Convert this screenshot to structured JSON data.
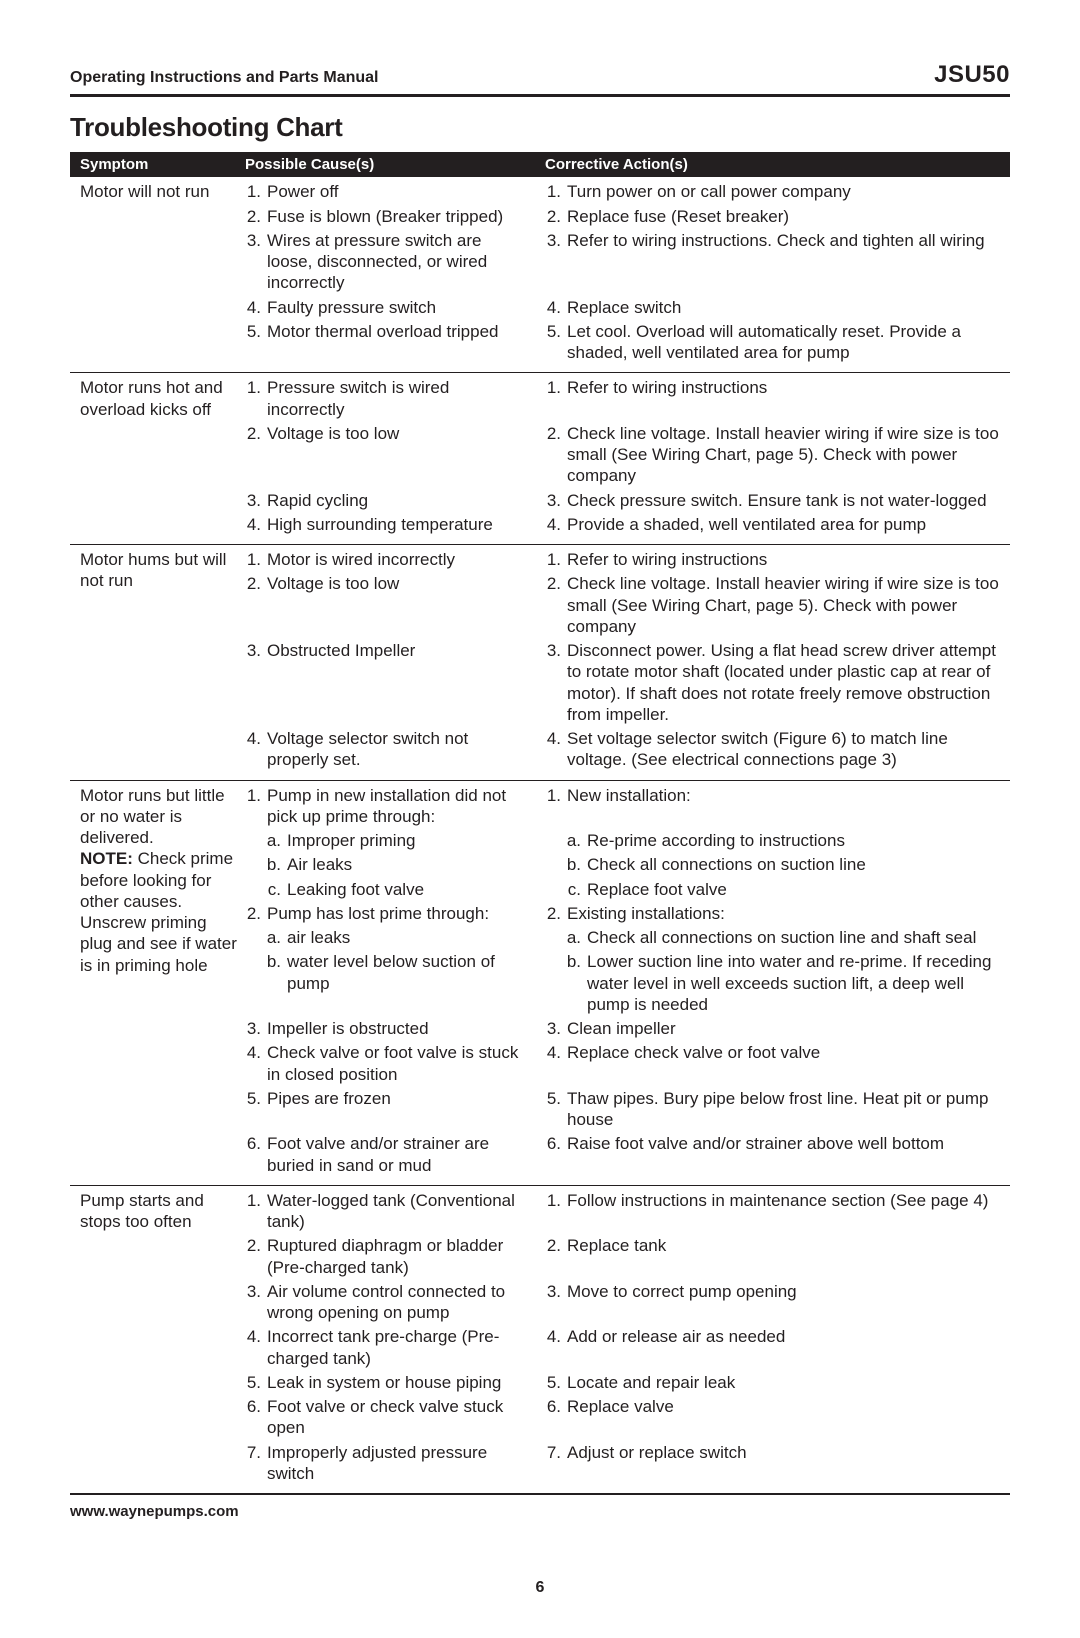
{
  "header": {
    "left": "Operating Instructions and Parts Manual",
    "right": "JSU50"
  },
  "title": "Troubleshooting Chart",
  "columns": {
    "symptom": "Symptom",
    "causes": "Possible Cause(s)",
    "actions": "Corrective Action(s)"
  },
  "sections": [
    {
      "symptom": [
        "Motor will not run"
      ],
      "rows": [
        {
          "n": "1.",
          "cause": "Power off",
          "action": "Turn power on or call power company"
        },
        {
          "n": "2.",
          "cause": "Fuse is blown (Breaker tripped)",
          "action": "Replace fuse (Reset breaker)"
        },
        {
          "n": "3.",
          "cause": "Wires at pressure switch are loose, disconnected, or wired incorrectly",
          "action": "Refer to wiring instructions. Check and tighten all wiring"
        },
        {
          "n": "4.",
          "cause": "Faulty pressure switch",
          "action": "Replace switch"
        },
        {
          "n": "5.",
          "cause": "Motor thermal overload tripped",
          "action": "Let cool. Overload will automatically reset. Provide a shaded, well ventilated area for pump"
        }
      ]
    },
    {
      "symptom": [
        "Motor runs hot and overload kicks off"
      ],
      "rows": [
        {
          "n": "1.",
          "cause": "Pressure switch is wired incorrectly",
          "action": "Refer to wiring instructions"
        },
        {
          "n": "2.",
          "cause": "Voltage is too low",
          "action": "Check line voltage. Install heavier wiring if wire size is too small (See Wiring Chart, page 5). Check with power company"
        },
        {
          "n": "3.",
          "cause": "Rapid cycling",
          "action": "Check pressure switch. Ensure tank is not water-logged"
        },
        {
          "n": "4.",
          "cause": "High surrounding temperature",
          "action": "Provide a shaded, well ventilated area for pump"
        }
      ]
    },
    {
      "symptom": [
        "Motor hums but will not run"
      ],
      "rows": [
        {
          "n": "1.",
          "cause": "Motor is wired incorrectly",
          "action": "Refer to wiring instructions"
        },
        {
          "n": "2.",
          "cause": "Voltage is too low",
          "action": "Check line voltage. Install heavier wiring if wire size is too small (See Wiring Chart, page 5). Check with power company"
        },
        {
          "n": "3.",
          "cause": "Obstructed Impeller",
          "action": "Disconnect power. Using a flat head screw driver attempt to rotate motor shaft (located under plastic cap at rear of motor). If shaft does not rotate freely remove obstruction from impeller."
        },
        {
          "n": "4.",
          "cause": "Voltage selector switch not properly set.",
          "action": "Set voltage selector switch (Figure 6) to match line voltage. (See electrical connections page 3)"
        }
      ]
    },
    {
      "symptom_html": "Motor runs but little or no water is delivered.<br><span class=\"note\">NOTE:</span> Check prime before looking for other causes. Unscrew priming plug and see if water is in priming hole",
      "rows": [
        {
          "n": "1.",
          "cause": "Pump in new installation did not pick up prime through:",
          "action": "New installation:"
        },
        {
          "sub": true,
          "l": "a.",
          "cause": "Improper priming",
          "action": "Re-prime according to instructions"
        },
        {
          "sub": true,
          "l": "b.",
          "cause": "Air leaks",
          "action": "Check all connections on suction line"
        },
        {
          "sub": true,
          "l": "c.",
          "cause": "Leaking foot valve",
          "action": "Replace foot valve"
        },
        {
          "n": "2.",
          "cause": "Pump has lost prime through:",
          "action": "Existing installations:"
        },
        {
          "sub": true,
          "l": "a.",
          "cause": "air leaks",
          "action": "Check all connections on suction line and shaft seal"
        },
        {
          "sub": true,
          "l": "b.",
          "cause": "water level below suction of pump",
          "action": "Lower suction line into water and re-prime. If receding water level in well exceeds suction lift, a deep well pump is needed"
        },
        {
          "n": "3.",
          "cause": "Impeller is obstructed",
          "action": "Clean impeller"
        },
        {
          "n": "4.",
          "cause": "Check valve or foot valve is stuck in closed position",
          "action": "Replace check valve or foot valve"
        },
        {
          "n": "5.",
          "cause": "Pipes are frozen",
          "action": "Thaw pipes. Bury pipe below frost line. Heat pit or pump house"
        },
        {
          "n": "6.",
          "cause": "Foot valve and/or strainer are buried in sand or mud",
          "action": "Raise foot valve and/or strainer above well bottom"
        }
      ]
    },
    {
      "symptom": [
        "Pump starts and stops too often"
      ],
      "rows": [
        {
          "n": "1.",
          "cause": "Water-logged tank (Conventional tank)",
          "action": "Follow instructions in maintenance section (See page 4)"
        },
        {
          "n": "2.",
          "cause": "Ruptured diaphragm or bladder (Pre-charged tank)",
          "action": "Replace tank"
        },
        {
          "n": "3.",
          "cause": "Air volume control connected to wrong opening on pump",
          "action": "Move to correct pump opening"
        },
        {
          "n": "4.",
          "cause": "Incorrect tank pre-charge (Pre-charged tank)",
          "action": "Add or release air as needed"
        },
        {
          "n": "5.",
          "cause": "Leak in system or house piping",
          "action": "Locate and repair leak"
        },
        {
          "n": "6.",
          "cause": "Foot valve or check valve stuck open",
          "action": "Replace valve"
        },
        {
          "n": "7.",
          "cause": "Improperly adjusted pressure switch",
          "action": "Adjust or replace switch"
        }
      ]
    }
  ],
  "footer": "www.waynepumps.com",
  "page_number": "6"
}
